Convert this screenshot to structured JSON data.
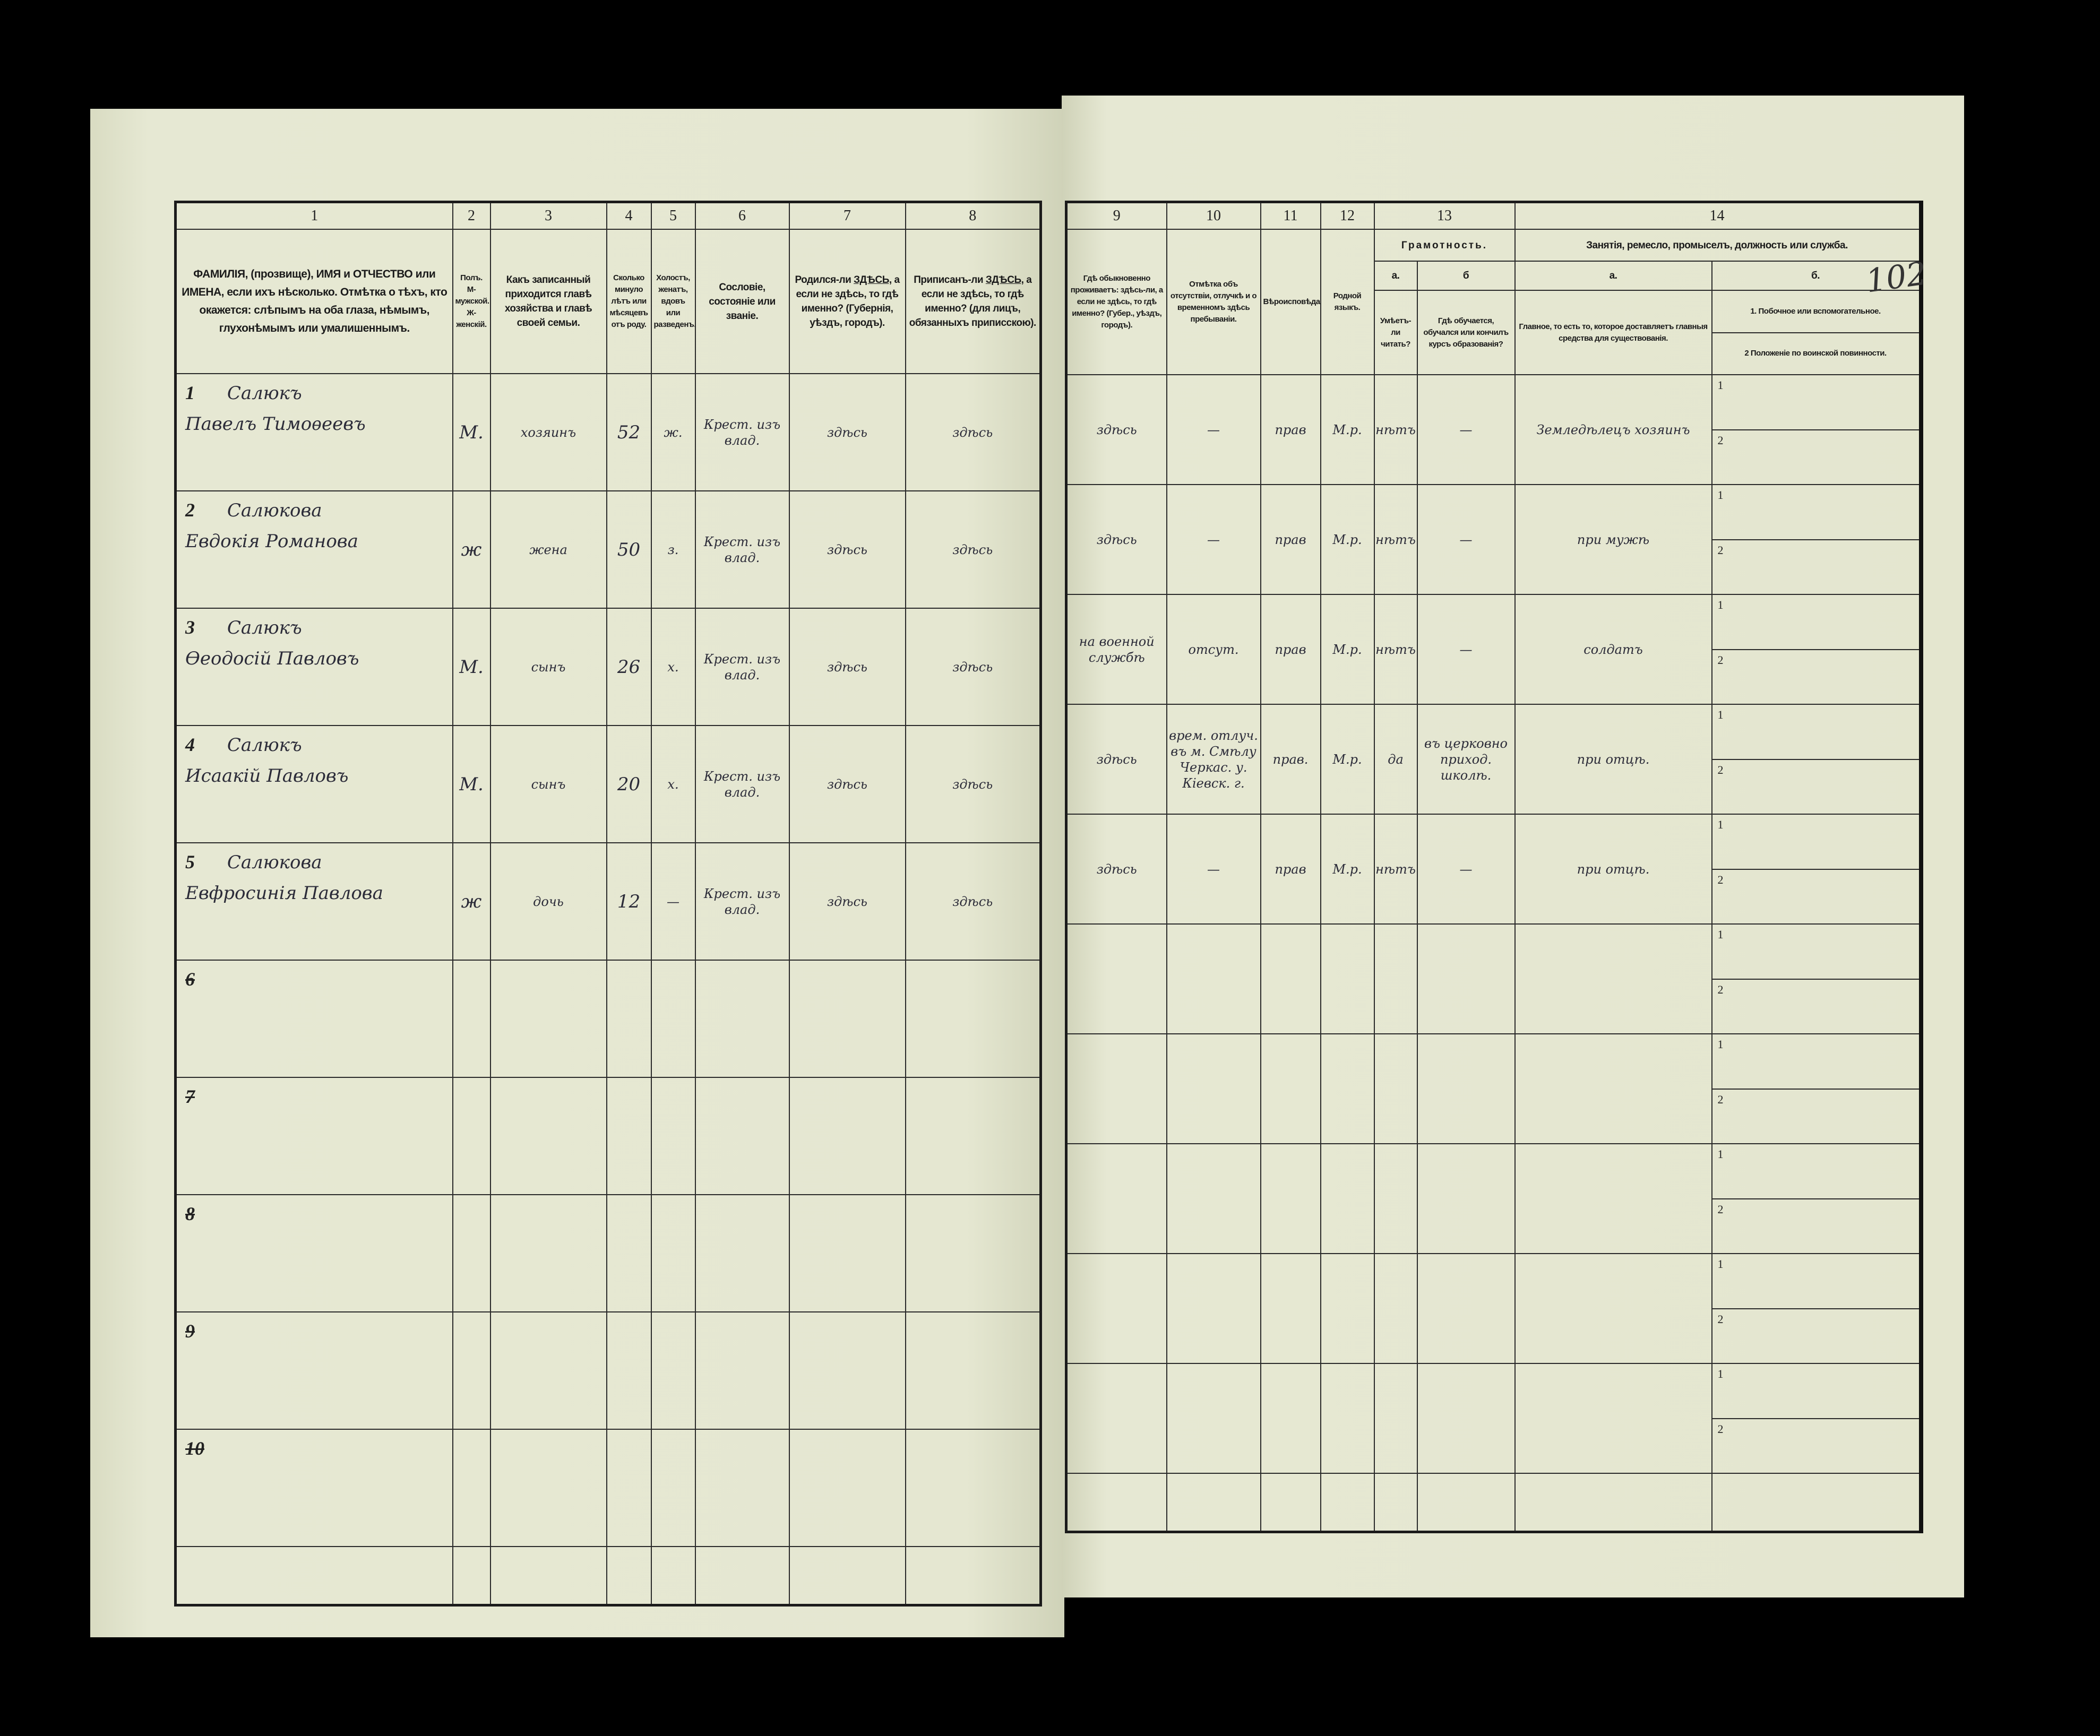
{
  "page_number": "102",
  "left_header": {
    "nums": [
      "1",
      "2",
      "3",
      "4",
      "5",
      "6",
      "7",
      "8"
    ],
    "c1": "ФАМИЛІЯ, (прозвище), ИМЯ и ОТЧЕСТВО или ИМЕНА, если ихъ нѣсколько. Отмѣтка о тѣхъ, кто окажется: слѣпымъ на оба глаза, нѣмымъ, глухонѣмымъ или умалишеннымъ.",
    "c2": "Полъ. М-мужской. Ж-женскій.",
    "c3": "Какъ записанный приходится главѣ хозяйства и главѣ своей семьи.",
    "c4": "Сколько минуло лѣтъ или мѣсяцевъ отъ роду.",
    "c5": "Холостъ, женатъ, вдовъ или разведенъ.",
    "c6": "Сословіе, состояніе или званіе.",
    "c7a": "Родился-ли",
    "c7b": "ЗДѢСЬ,",
    "c7c": "а если не здѣсь, то гдѣ именно? (Губернія, уѣздъ, городъ).",
    "c8a": "Приписанъ-ли",
    "c8b": "ЗДѢСЬ,",
    "c8c": "а если не здѣсь, то гдѣ именно? (для лицъ, обязанныхъ приписскою)."
  },
  "right_header": {
    "nums": [
      "9",
      "10",
      "11",
      "12",
      "13",
      "14"
    ],
    "c9": "Гдѣ обыкновенно проживаетъ: здѣсь-ли, а если не здѣсь, то гдѣ именно? (Губер., уѣздъ, городъ).",
    "c10": "Отмѣтка объ отсутствіи, отлучкѣ и о временномъ здѣсь пребываніи.",
    "c11": "Вѣроисповѣданіе.",
    "c12": "Родной языкъ.",
    "c13": "Грамотность.",
    "c13a_letter": "а.",
    "c13b_letter": "б",
    "c13a": "Умѣетъ-ли читать?",
    "c13b": "Гдѣ обучается, обучался или кончилъ курсъ образованія?",
    "c14": "Занятія, ремесло, промыселъ, должность или служба.",
    "c14a_letter": "а.",
    "c14b_letter": "б.",
    "c14a": "Главное, то есть то, которое доставляетъ главныя средства для существованія.",
    "c14b1": "1. Побочное или вспомогательное.",
    "c14b2": "2 Положеніе по воинской повинности."
  },
  "sub_labels": [
    "1",
    "2"
  ],
  "rows": [
    {
      "num": "1",
      "surname": "Салюкъ",
      "given": "Павелъ Тимоѳеевъ",
      "sex": "М.",
      "relation": "хозяинъ",
      "age": "52",
      "marital": "ж.",
      "estate": "Крест. изъ влад.",
      "born": "здѣсь",
      "registered": "здѣсь",
      "residence": "здѣсь",
      "absence": "—",
      "religion": "прав",
      "language": "М.р.",
      "literate": "нѣтъ",
      "education": "—",
      "occupation": "Земледѣлецъ хозяинъ"
    },
    {
      "num": "2",
      "surname": "Салюкова",
      "given": "Евдокія Романова",
      "sex": "ж",
      "relation": "жена",
      "age": "50",
      "marital": "з.",
      "estate": "Крест. изъ влад.",
      "born": "здѣсь",
      "registered": "здѣсь",
      "residence": "здѣсь",
      "absence": "—",
      "religion": "прав",
      "language": "М.р.",
      "literate": "нѣтъ",
      "education": "—",
      "occupation": "при мужѣ"
    },
    {
      "num": "3",
      "surname": "Салюкъ",
      "given": "Ѳеодосій Павловъ",
      "sex": "М.",
      "relation": "сынъ",
      "age": "26",
      "marital": "х.",
      "estate": "Крест. изъ влад.",
      "born": "здѣсь",
      "registered": "здѣсь",
      "residence": "на военной службѣ",
      "absence": "отсут.",
      "religion": "прав",
      "language": "М.р.",
      "literate": "нѣтъ",
      "education": "—",
      "occupation": "солдатъ"
    },
    {
      "num": "4",
      "surname": "Салюкъ",
      "given": "Исаакій Павловъ",
      "sex": "М.",
      "relation": "сынъ",
      "age": "20",
      "marital": "х.",
      "estate": "Крест. изъ влад.",
      "born": "здѣсь",
      "registered": "здѣсь",
      "residence": "здѣсь",
      "absence": "врем. отлуч. въ м. Смѣлу Черкас. у. Кіевск. г.",
      "religion": "прав.",
      "language": "М.р.",
      "literate": "да",
      "education": "въ церковно приход. школѣ.",
      "occupation": "при отцѣ."
    },
    {
      "num": "5",
      "surname": "Салюкова",
      "given": "Евфросинія Павлова",
      "sex": "ж",
      "relation": "дочь",
      "age": "12",
      "marital": "—",
      "estate": "Крест. изъ влад.",
      "born": "здѣсь",
      "registered": "здѣсь",
      "residence": "здѣсь",
      "absence": "—",
      "religion": "прав",
      "language": "М.р.",
      "literate": "нѣтъ",
      "education": "—",
      "occupation": "при отцѣ."
    },
    {
      "num": "6"
    },
    {
      "num": "7"
    },
    {
      "num": "8"
    },
    {
      "num": "9"
    },
    {
      "num": "10"
    }
  ]
}
